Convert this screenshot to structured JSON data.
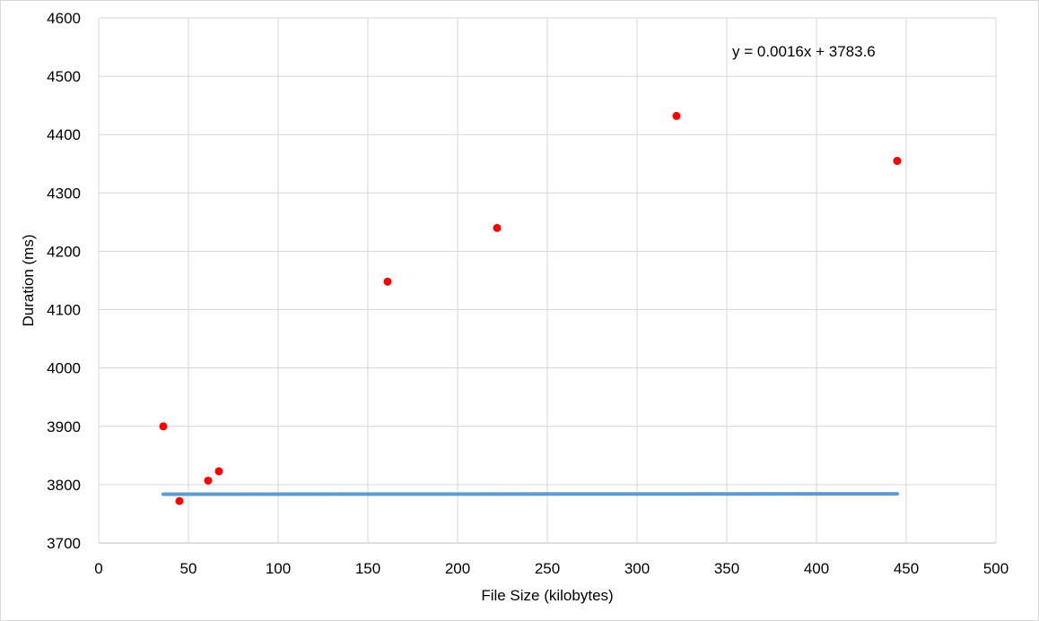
{
  "chart_data": {
    "type": "scatter",
    "title": "",
    "xlabel": "File Size (kilobytes)",
    "ylabel": "Duration (ms)",
    "xlim": [
      0,
      500
    ],
    "ylim": [
      3700,
      4600
    ],
    "x_ticks": [
      0,
      50,
      100,
      150,
      200,
      250,
      300,
      350,
      400,
      450,
      500
    ],
    "y_ticks": [
      3700,
      3800,
      3900,
      4000,
      4100,
      4200,
      4300,
      4400,
      4500,
      4600
    ],
    "grid": true,
    "legend": "none",
    "series": [
      {
        "color": "#ff0000",
        "points": [
          {
            "x": 36,
            "y": 3900
          },
          {
            "x": 45,
            "y": 3772
          },
          {
            "x": 61,
            "y": 3807
          },
          {
            "x": 67,
            "y": 3823
          },
          {
            "x": 161,
            "y": 4148
          },
          {
            "x": 222,
            "y": 4240
          },
          {
            "x": 322,
            "y": 4432
          },
          {
            "x": 445,
            "y": 4355
          }
        ]
      }
    ],
    "trendline": {
      "type": "linear",
      "slope": 0.0016,
      "intercept": 3783.6,
      "x_range": [
        36,
        445
      ],
      "color": "#5b9bd5",
      "equation": "y = 0.0016x + 3783.6"
    }
  }
}
